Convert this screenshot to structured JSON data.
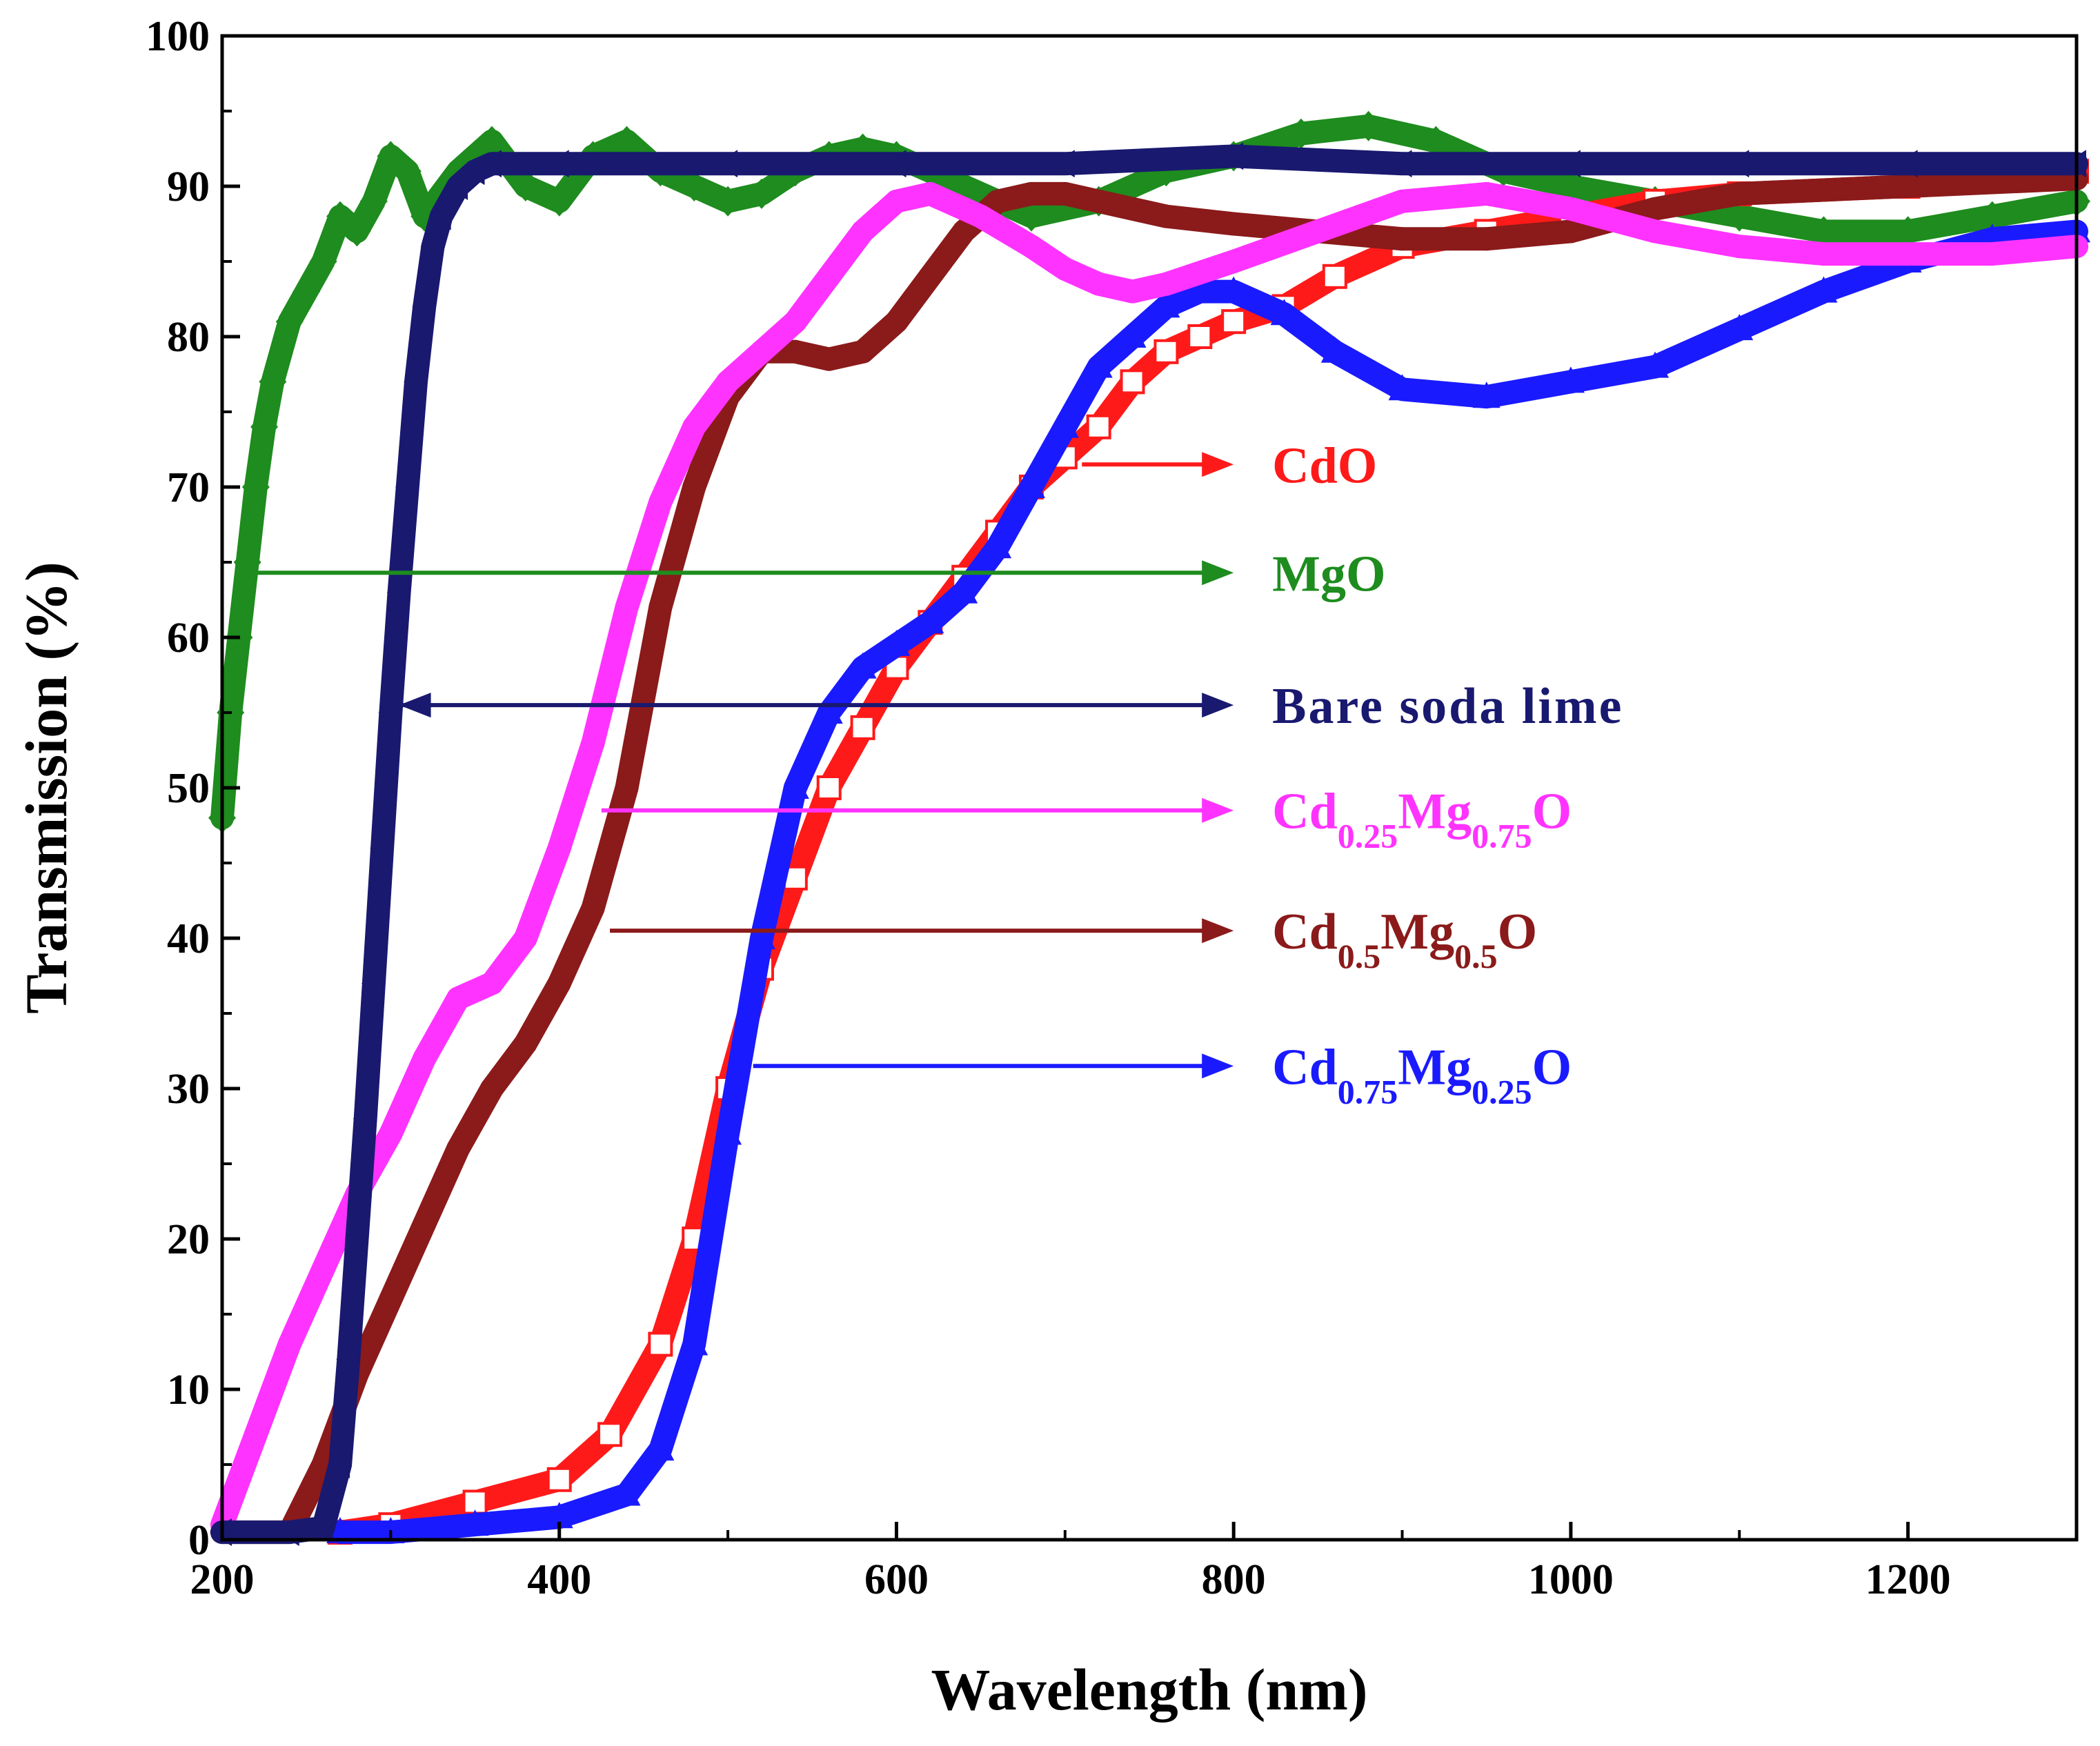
{
  "chart_data": {
    "type": "line",
    "title": "",
    "xlabel": "Wavelength (nm)",
    "ylabel": "Transmission (%)",
    "xlim": [
      200,
      1300
    ],
    "ylim": [
      0,
      100
    ],
    "x_ticks": [
      200,
      400,
      600,
      800,
      1000,
      1200
    ],
    "y_ticks": [
      0,
      10,
      20,
      30,
      40,
      50,
      60,
      70,
      80,
      90,
      100
    ],
    "grid": false,
    "legend_position": "center-right",
    "series": [
      {
        "name": "CdO",
        "label_main": "CdO",
        "color": "#ff1a1a",
        "marker": "square-open",
        "x": [
          270,
          300,
          350,
          400,
          430,
          460,
          480,
          500,
          520,
          540,
          560,
          580,
          600,
          620,
          640,
          660,
          680,
          700,
          720,
          740,
          760,
          780,
          800,
          830,
          860,
          900,
          950,
          1000,
          1050,
          1100,
          1200,
          1300
        ],
        "y": [
          0.5,
          1,
          2.5,
          4,
          7,
          13,
          20,
          30,
          38,
          44,
          50,
          54,
          58,
          61,
          64,
          67,
          70,
          72,
          74,
          77,
          79,
          80,
          81,
          82,
          84,
          86,
          87,
          88,
          89,
          89.5,
          90,
          91
        ]
      },
      {
        "name": "MgO",
        "label_main": "MgO",
        "color": "#1e8c1e",
        "marker": "diamond",
        "x": [
          200,
          205,
          210,
          215,
          220,
          225,
          230,
          240,
          250,
          260,
          270,
          280,
          290,
          300,
          310,
          320,
          340,
          360,
          380,
          400,
          420,
          440,
          460,
          480,
          500,
          520,
          540,
          560,
          580,
          600,
          640,
          680,
          720,
          760,
          800,
          840,
          880,
          920,
          960,
          1000,
          1050,
          1100,
          1150,
          1200,
          1250,
          1300
        ],
        "y": [
          48,
          55,
          60,
          65,
          70,
          74,
          77,
          81,
          83,
          85,
          88,
          87,
          89,
          92,
          91,
          88,
          91,
          93,
          90,
          89,
          92,
          93,
          91,
          90,
          89,
          89.5,
          91,
          92,
          92.5,
          92,
          90,
          88,
          89,
          91,
          92,
          93.5,
          94,
          93,
          91,
          90,
          89,
          88,
          87,
          87,
          88,
          89
        ]
      },
      {
        "name": "Bare soda lime",
        "label_main": "Bare soda lime",
        "color": "#191970",
        "marker": "triangle-left",
        "x": [
          200,
          240,
          260,
          270,
          275,
          280,
          285,
          290,
          295,
          300,
          305,
          310,
          315,
          320,
          325,
          330,
          340,
          350,
          360,
          400,
          500,
          600,
          700,
          800,
          900,
          1000,
          1100,
          1200,
          1300
        ],
        "y": [
          0.5,
          0.5,
          0.8,
          5,
          12,
          20,
          28,
          37,
          46,
          55,
          63,
          70,
          77,
          82,
          86,
          88,
          90,
          91,
          91.5,
          91.5,
          91.5,
          91.5,
          91.5,
          92,
          91.5,
          91.5,
          91.5,
          91.5,
          91.5
        ]
      },
      {
        "name": "Cd0.25Mg0.75O",
        "label_main": "Cd",
        "label_parts": [
          "Cd",
          "0.25",
          "Mg",
          "0.75",
          "O"
        ],
        "color": "#ff33ff",
        "marker": "circle",
        "x": [
          200,
          220,
          240,
          260,
          280,
          300,
          320,
          340,
          360,
          380,
          400,
          420,
          440,
          460,
          480,
          500,
          520,
          540,
          560,
          580,
          600,
          620,
          650,
          680,
          700,
          720,
          740,
          760,
          800,
          850,
          900,
          950,
          1000,
          1050,
          1100,
          1150,
          1200,
          1250,
          1300
        ],
        "y": [
          1,
          7,
          13,
          18,
          23,
          27,
          32,
          36,
          37,
          40,
          46,
          53,
          62,
          69,
          74,
          77,
          79,
          81,
          84,
          87,
          89,
          89.5,
          88,
          86,
          84.5,
          83.5,
          83,
          83.5,
          85,
          87,
          89,
          89.5,
          88.5,
          87,
          86,
          85.5,
          85.5,
          85.5,
          86
        ]
      },
      {
        "name": "Cd0.5Mg0.5O",
        "label_main": "Cd",
        "label_parts": [
          "Cd",
          "0.5",
          "Mg",
          "0.5",
          "O"
        ],
        "color": "#8b1a1a",
        "marker": "circle",
        "x": [
          200,
          240,
          260,
          280,
          300,
          320,
          340,
          360,
          380,
          400,
          420,
          440,
          460,
          480,
          500,
          520,
          540,
          560,
          580,
          600,
          620,
          640,
          660,
          680,
          700,
          720,
          760,
          800,
          850,
          900,
          950,
          1000,
          1050,
          1100,
          1200,
          1300
        ],
        "y": [
          0.5,
          0.5,
          5,
          11,
          16,
          21,
          26,
          30,
          33,
          37,
          42,
          50,
          62,
          70,
          76,
          79,
          79,
          78.5,
          79,
          81,
          84,
          87,
          89,
          89.5,
          89.5,
          89,
          88,
          87.5,
          87,
          86.5,
          86.5,
          87,
          88.5,
          89.5,
          90,
          90.5
        ]
      },
      {
        "name": "Cd0.75Mg0.25O",
        "label_main": "Cd",
        "label_parts": [
          "Cd",
          "0.75",
          "Mg",
          "0.25",
          "O"
        ],
        "color": "#1a1aff",
        "marker": "triangle-up",
        "x": [
          270,
          300,
          350,
          400,
          440,
          460,
          480,
          500,
          520,
          540,
          560,
          580,
          600,
          620,
          640,
          660,
          680,
          700,
          720,
          740,
          760,
          780,
          800,
          830,
          860,
          900,
          950,
          1000,
          1050,
          1100,
          1150,
          1200,
          1250,
          1300
        ],
        "y": [
          0.5,
          0.5,
          1,
          1.5,
          3,
          6,
          13,
          27,
          40,
          50,
          55,
          58,
          59.5,
          61,
          63,
          66,
          70,
          74,
          78,
          80,
          82,
          83,
          83,
          81.5,
          79,
          76.5,
          76,
          77,
          78,
          80.5,
          83,
          85,
          86.5,
          87
        ]
      }
    ],
    "annotations": [
      {
        "series": "CdO",
        "arrow_from": [
          710,
          71.5
        ],
        "arrow_to": [
          800,
          71.5
        ],
        "direction": "right"
      },
      {
        "series": "MgO",
        "arrow_from": [
          212,
          64.3
        ],
        "arrow_to": [
          800,
          64.3
        ],
        "direction": "right"
      },
      {
        "series": "Bare soda lime",
        "arrow_from": [
          305,
          55.5
        ],
        "arrow_to": [
          800,
          55.5
        ],
        "direction": "both"
      },
      {
        "series": "Cd0.25Mg0.75O",
        "arrow_from": [
          425,
          48.5
        ],
        "arrow_to": [
          800,
          48.5
        ],
        "direction": "right"
      },
      {
        "series": "Cd0.5Mg0.5O",
        "arrow_from": [
          430,
          40.5
        ],
        "arrow_to": [
          800,
          40.5
        ],
        "direction": "right"
      },
      {
        "series": "Cd0.75Mg0.25O",
        "arrow_from": [
          515,
          31.5
        ],
        "arrow_to": [
          800,
          31.5
        ],
        "direction": "right"
      }
    ]
  }
}
